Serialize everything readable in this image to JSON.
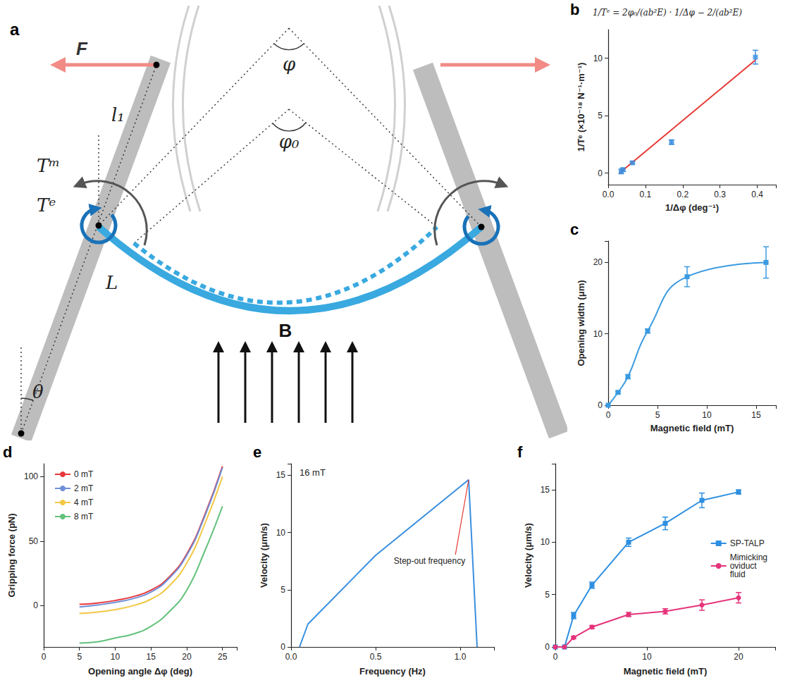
{
  "diagram": {
    "panel": "a",
    "labels": {
      "force": "F",
      "arm": "l₁",
      "magnetic_torque": "Tᵐ",
      "elastic_torque": "Tᵉ",
      "length": "L",
      "tilt": "θ",
      "angle": "φ",
      "rest_angle": "φ₀",
      "field": "B"
    }
  },
  "chart_data": [
    {
      "panel": "b",
      "type": "scatter",
      "annotations": [
        {
          "text": "1/Tᵉ = 2φ₀/(ab²E) · 1/Δφ − 2/(ab²E)"
        }
      ],
      "x_label": "1/Δφ (deg⁻¹)",
      "y_label": "1/Tᵉ (×10⁻¹⁸ N⁻¹·m⁻¹)",
      "xlim": [
        0,
        0.45
      ],
      "xticks": [
        {
          "value": 0,
          "label": "0.0"
        },
        0.1,
        0.2,
        0.3,
        0.4
      ],
      "ylim": [
        -1,
        12.5
      ],
      "yticks": [
        0,
        5,
        10
      ],
      "grid": false,
      "series": [
        {
          "type": "scatter",
          "color": "#3a8fe0",
          "marker": "square",
          "x": [
            0.035,
            0.04,
            0.065,
            0.17,
            0.395
          ],
          "values": [
            0.15,
            0.3,
            0.9,
            2.7,
            10.1
          ],
          "errors": [
            0.2,
            0.15,
            0.1,
            0.2,
            0.6
          ]
        },
        {
          "type": "line",
          "color": "#e53935",
          "marker": "none",
          "x": [
            0.03,
            0.395
          ],
          "values": [
            0,
            9.85
          ]
        }
      ]
    },
    {
      "panel": "c",
      "type": "line",
      "x_label": "Magnetic field (mT)",
      "y_label": "Opening width (μm)",
      "xlim": [
        0,
        17
      ],
      "xticks": [
        0,
        5,
        10,
        15
      ],
      "ylim": [
        0,
        23
      ],
      "yticks": [
        0,
        10,
        20
      ],
      "grid": false,
      "series": [
        {
          "color": "#3a9be0",
          "marker": "square",
          "line_style": "smooth",
          "x": [
            0,
            1,
            2,
            4,
            8,
            16
          ],
          "values": [
            0,
            1.8,
            4.0,
            10.4,
            18,
            20
          ],
          "errors": [
            0,
            0.15,
            0.3,
            0.3,
            1.4,
            2.2
          ]
        }
      ]
    },
    {
      "panel": "d",
      "type": "line",
      "x_label": "Opening angle Δφ (deg)",
      "y_label": "Gripping force (pN)",
      "xlim": [
        0,
        27
      ],
      "xticks": [
        0,
        5,
        10,
        15,
        20,
        25
      ],
      "ylim": [
        -32,
        110
      ],
      "yticks": [
        0,
        50,
        100
      ],
      "grid": false,
      "legend": "top-left",
      "series": [
        {
          "name": "0 mT",
          "color": "#e8383d",
          "marker": "none",
          "line_style": "smooth",
          "x": [
            5,
            7.5,
            10,
            12.5,
            15,
            17.5,
            20,
            22.5,
            25
          ],
          "values": [
            1,
            2,
            4,
            7,
            12,
            22,
            40,
            70,
            108
          ]
        },
        {
          "name": "2 mT",
          "color": "#6f8fd6",
          "marker": "none",
          "line_style": "smooth",
          "x": [
            5,
            7.5,
            10,
            12.5,
            15,
            17.5,
            20,
            22.5,
            25
          ],
          "values": [
            -1,
            0.5,
            2.5,
            5.5,
            10.5,
            21,
            39,
            69,
            107
          ]
        },
        {
          "name": "4 mT",
          "color": "#f2c744",
          "marker": "none",
          "line_style": "smooth",
          "x": [
            5,
            7.5,
            10,
            12.5,
            15,
            17.5,
            20,
            22.5,
            25
          ],
          "values": [
            -6,
            -5,
            -3,
            0,
            5,
            15,
            33,
            63,
            100
          ]
        },
        {
          "name": "8 mT",
          "color": "#63c27b",
          "marker": "none",
          "line_style": "smooth",
          "x": [
            5,
            7.5,
            10,
            12.5,
            15,
            17.5,
            20,
            22.5,
            25
          ],
          "values": [
            -29,
            -28,
            -25,
            -22,
            -16,
            -5,
            12,
            42,
            77
          ]
        }
      ]
    },
    {
      "panel": "e",
      "type": "line",
      "subtitle": "16 mT",
      "annotations": [
        {
          "text": "Step-out frequency",
          "x": 1.03,
          "y": 7.5
        }
      ],
      "x_label": "Frequency (Hz)",
      "y_label": "Velocity (μm/s)",
      "xlim": [
        0,
        1.2
      ],
      "xticks": [
        {
          "value": 0,
          "label": "0.0"
        },
        0.5,
        {
          "value": 1,
          "label": "1.0"
        }
      ],
      "ylim": [
        0,
        16
      ],
      "yticks": [
        0,
        5,
        10,
        15
      ],
      "grid": false,
      "series": [
        {
          "color": "#3a8fe0",
          "marker": "none",
          "x": [
            0.05,
            0.1,
            0.5,
            1.05,
            1.1
          ],
          "values": [
            0,
            2,
            8,
            14.6,
            0
          ]
        }
      ]
    },
    {
      "panel": "f",
      "type": "line",
      "x_label": "Magnetic field (mT)",
      "y_label": "Velocity (μm/s)",
      "xlim": [
        0,
        24
      ],
      "xticks": [
        0,
        10,
        20
      ],
      "ylim": [
        0,
        17.5
      ],
      "yticks": [
        0,
        5,
        10,
        15
      ],
      "grid": false,
      "legend": "right",
      "series": [
        {
          "name": "SP-TALP",
          "color": "#2e8fe0",
          "marker": "square",
          "x": [
            0,
            1,
            2,
            4,
            8,
            12,
            16,
            20
          ],
          "values": [
            0,
            0,
            3.0,
            5.9,
            10,
            11.8,
            14,
            14.8
          ],
          "errors": [
            0,
            0,
            0.3,
            0.3,
            0.4,
            0.6,
            0.7,
            0.2
          ]
        },
        {
          "name": "Mimicking oviduct fluid",
          "color": "#e6337a",
          "marker": "circle",
          "x": [
            0,
            1,
            2,
            4,
            8,
            12,
            16,
            20
          ],
          "values": [
            0,
            0,
            0.9,
            1.9,
            3.1,
            3.4,
            4,
            4.7
          ],
          "errors": [
            0,
            0,
            0.1,
            0.15,
            0.2,
            0.25,
            0.5,
            0.5
          ]
        }
      ]
    }
  ]
}
